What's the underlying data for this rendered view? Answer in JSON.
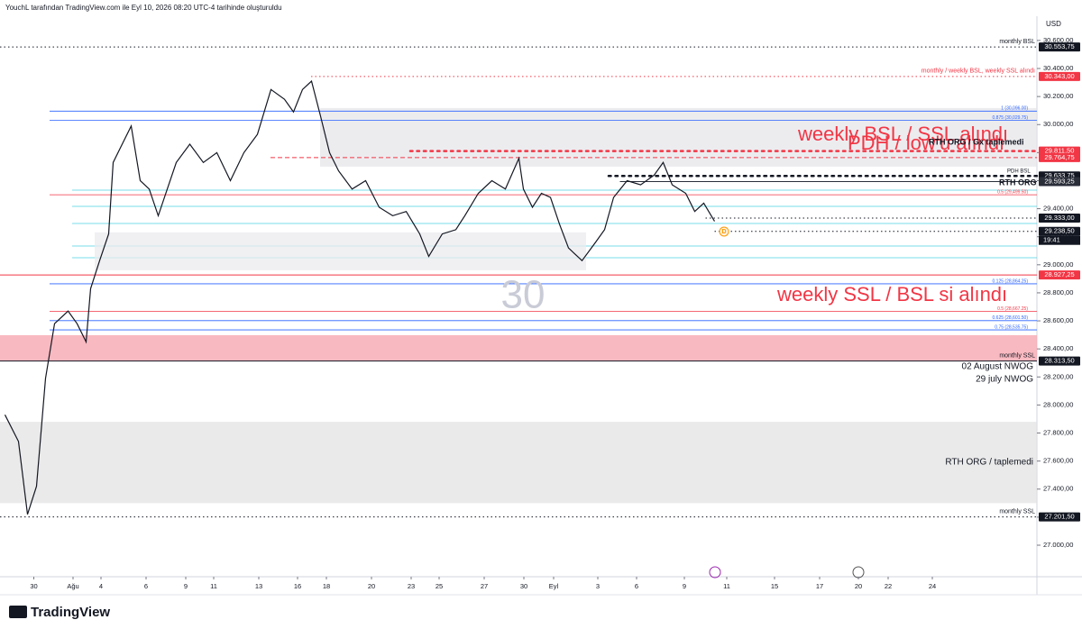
{
  "header": {
    "caption": "YouchL tarafından TradingView.com ile Eyl 10, 2026 08:20 UTC-4 tarihinde oluşturuldu",
    "currency": "USD"
  },
  "footer": {
    "brand": "TradingView"
  },
  "chart_data": {
    "type": "line",
    "color": "#131722",
    "x": [
      -1.28,
      -0.68,
      -0.28,
      0.12,
      0.52,
      0.92,
      1.52,
      1.92,
      2.32,
      2.52,
      2.92,
      3.32,
      3.52,
      3.92,
      4.32,
      4.72,
      5.12,
      5.52,
      5.92,
      6.32,
      6.92,
      7.52,
      8.12,
      8.72,
      9.32,
      9.92,
      10.52,
      11.12,
      11.52,
      11.92,
      12.32,
      12.72,
      13.12,
      13.52,
      14.12,
      14.72,
      15.32,
      15.92,
      16.52,
      17.12,
      17.52,
      18.12,
      18.72,
      19.12,
      19.72,
      20.32,
      20.92,
      21.52,
      21.72,
      22.12,
      22.52,
      22.92,
      23.32,
      23.72,
      24.32,
      24.92,
      25.32,
      25.72,
      26.32,
      26.92,
      27.52,
      27.92,
      28.32,
      28.92,
      29.32,
      29.72,
      30.2
    ],
    "values": [
      27930,
      27740,
      27220,
      27420,
      28190,
      28580,
      28670,
      28580,
      28450,
      28830,
      29030,
      29220,
      29730,
      29860,
      29990,
      29600,
      29540,
      29350,
      29540,
      29730,
      29860,
      29730,
      29800,
      29600,
      29800,
      29930,
      30250,
      30180,
      30090,
      30250,
      30310,
      30060,
      29800,
      29670,
      29540,
      29600,
      29410,
      29350,
      29380,
      29220,
      29060,
      29220,
      29250,
      29350,
      29510,
      29600,
      29540,
      29760,
      29540,
      29410,
      29510,
      29480,
      29290,
      29120,
      29030,
      29160,
      29250,
      29480,
      29600,
      29570,
      29640,
      29730,
      29570,
      29510,
      29380,
      29440,
      29310
    ],
    "xlim": [
      -1.5,
      44.5
    ],
    "ylim": [
      26775,
      30760
    ],
    "xticks": [
      {
        "value": 0,
        "label": "30"
      },
      {
        "value": 1.74,
        "label": "Ağu"
      },
      {
        "value": 2.98,
        "label": "4"
      },
      {
        "value": 4.98,
        "label": "6"
      },
      {
        "value": 6.74,
        "label": "9"
      },
      {
        "value": 7.98,
        "label": "11"
      },
      {
        "value": 9.98,
        "label": "13"
      },
      {
        "value": 11.7,
        "label": "16"
      },
      {
        "value": 12.98,
        "label": "18"
      },
      {
        "value": 14.98,
        "label": "20"
      },
      {
        "value": 16.74,
        "label": "23"
      },
      {
        "value": 17.98,
        "label": "25"
      },
      {
        "value": 19.98,
        "label": "27"
      },
      {
        "value": 21.74,
        "label": "30"
      },
      {
        "value": 23.06,
        "label": "Eyl"
      },
      {
        "value": 25.02,
        "label": "3"
      },
      {
        "value": 26.74,
        "label": "6"
      },
      {
        "value": 28.86,
        "label": "9"
      },
      {
        "value": 30.74,
        "label": "11"
      },
      {
        "value": 32.86,
        "label": "15"
      },
      {
        "value": 34.86,
        "label": "17"
      },
      {
        "value": 36.58,
        "label": "20"
      },
      {
        "value": 37.9,
        "label": "22"
      },
      {
        "value": 39.86,
        "label": "24"
      }
    ],
    "yticks": [
      {
        "value": 27000,
        "label": "27.000,00"
      },
      {
        "value": 27200,
        "label": "27.200,00"
      },
      {
        "value": 27400,
        "label": "27.400,00"
      },
      {
        "value": 27600,
        "label": "27.600,00"
      },
      {
        "value": 27800,
        "label": "27.800,00"
      },
      {
        "value": 28000,
        "label": "28.000,00"
      },
      {
        "value": 28200,
        "label": "28.200,00"
      },
      {
        "value": 28400,
        "label": "28.400,00"
      },
      {
        "value": 28600,
        "label": "28.600,00"
      },
      {
        "value": 28800,
        "label": "28.800,00"
      },
      {
        "value": 29000,
        "label": "29.000,00"
      },
      {
        "value": 29200,
        "label": "29.200,00"
      },
      {
        "value": 29400,
        "label": "29.400,00"
      },
      {
        "value": 29600,
        "label": "29.600,00"
      },
      {
        "value": 29800,
        "label": "29.800,00"
      },
      {
        "value": 30000,
        "label": "30.000,00"
      },
      {
        "value": 30200,
        "label": "30.200,00"
      },
      {
        "value": 30400,
        "label": "30.400,00"
      },
      {
        "value": 30600,
        "label": "30.600,00"
      }
    ],
    "zones": [
      {
        "from": 28313.5,
        "to": 28498,
        "x0": -1.5,
        "x1": 44.5,
        "color": "#f7a1ab"
      },
      {
        "from": 29700,
        "to": 30118,
        "x0": 12.7,
        "x1": 44.5,
        "color": "#e6e6ea"
      },
      {
        "from": 28961,
        "to": 29231,
        "x0": 2.7,
        "x1": 24.5,
        "color": "#ebebee"
      },
      {
        "from": 27300,
        "to": 27880,
        "x0": -1.5,
        "x1": 44.5,
        "color": "#e3e3e3"
      }
    ],
    "zone_labels": [
      "02 August NWOG",
      "29 july NWOG",
      "RTH ORG / taplemedi"
    ],
    "levels": [
      {
        "value": 30553.75,
        "label": "30.553,75",
        "color": "#131722",
        "style": "dotted",
        "x0": -1.5,
        "note": "monthly BSL"
      },
      {
        "value": 30343,
        "label": "30.343,00",
        "color": "#f23645",
        "style": "dotted",
        "x0": 12.3,
        "note": "monthly / weekly BSL, weekly SSL alındı"
      },
      {
        "value": 29811.5,
        "label": "29.811,50",
        "color": "#f23645",
        "style": "bigdots",
        "x0": 16.7
      },
      {
        "value": 29764.75,
        "label": "29.764,75",
        "color": "#f23645",
        "style": "dashed",
        "x0": 10.5
      },
      {
        "value": 29633.75,
        "label": "29.633,75",
        "color": "#131722",
        "style": "bigdots",
        "x0": 25.5
      },
      {
        "value": 29593.25,
        "label": "29.593,25",
        "color": "#2a2e39",
        "style": "solid",
        "x0": 26
      },
      {
        "value": 29333,
        "label": "29.333,00",
        "color": "#131722",
        "style": "dotted",
        "x0": 29.8
      },
      {
        "value": 29238.5,
        "label": "29.238,50",
        "color": "#131722",
        "style": "dotted",
        "x0": 30.2,
        "countdown": "19:41"
      },
      {
        "value": 28927.25,
        "label": "28.927,25",
        "color": "#f23645",
        "style": "solid",
        "x0": -1.5
      },
      {
        "value": 28313.5,
        "label": "28.313,50",
        "color": "#131722",
        "style": "solid",
        "x0": -1.5,
        "note": "monthly SSL"
      },
      {
        "value": 27201.5,
        "label": "27.201,50",
        "color": "#131722",
        "style": "dotted",
        "x0": -1.5,
        "note": "monthly SSL"
      }
    ],
    "fibs": [
      {
        "value": 30096,
        "label": "1 (30,096.00)",
        "color": "#2962ff"
      },
      {
        "value": 30029.75,
        "label": "0.875 (30,029.75)",
        "color": "#2962ff"
      },
      {
        "value": 29499.5,
        "label": "0.5 (29,499.50)",
        "color": "#f23645"
      },
      {
        "value": 28864.25,
        "label": "0.125 (28,864.25)",
        "color": "#2962ff"
      },
      {
        "value": 28667.25,
        "label": "0.5 (28,667.25)",
        "color": "#f23645"
      },
      {
        "value": 28601.5,
        "label": "0.625 (28,601.50)",
        "color": "#2962ff"
      },
      {
        "value": 28535.75,
        "label": "0.75 (28,535.75)",
        "color": "#2962ff"
      }
    ],
    "annotations": [
      "weekly BSL / SSL alındı",
      "PDH / low'u alındı",
      "RTH ORG / Gx taplemedi",
      "RTH ORG",
      "PDH BSL",
      "weekly SSL / BSL si alındı",
      "30",
      "D"
    ]
  }
}
